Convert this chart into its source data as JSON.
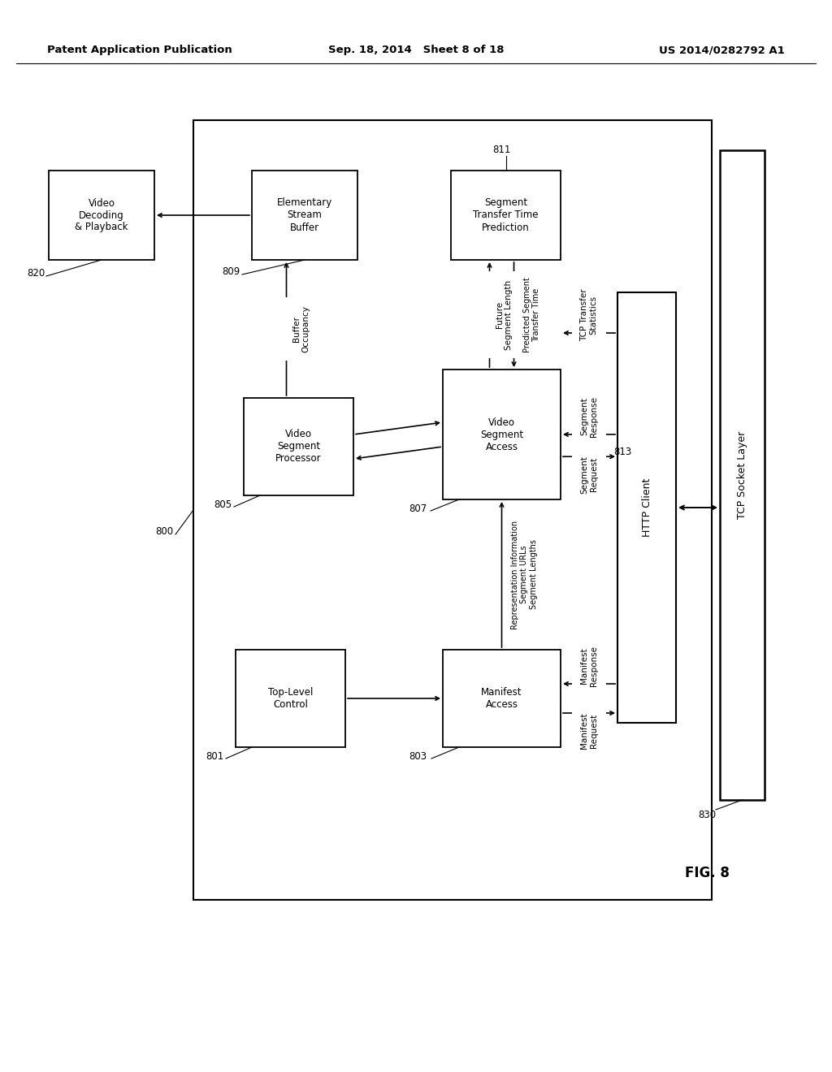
{
  "title_left": "Patent Application Publication",
  "title_center": "Sep. 18, 2014  Sheet 8 of 18",
  "title_right": "US 2014/0282792 A1",
  "fig_label": "FIG. 8",
  "background": "#ffffff"
}
